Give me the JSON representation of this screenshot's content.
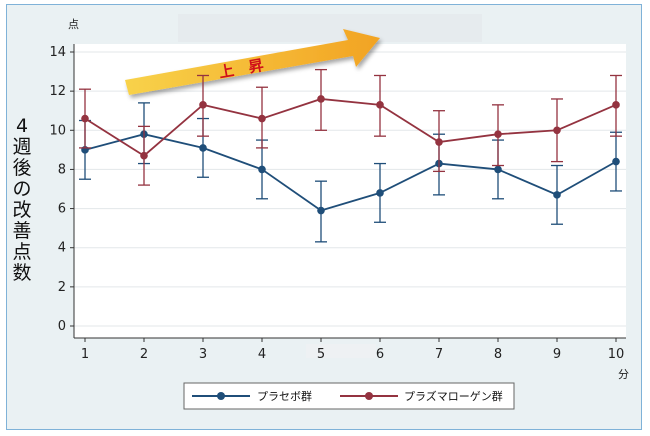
{
  "chart_data": {
    "type": "line",
    "ylabel": "4週後の改善点数",
    "y_unit": "点",
    "x_unit": "分",
    "x": [
      1,
      2,
      3,
      4,
      5,
      6,
      7,
      8,
      9,
      10
    ],
    "xlim": [
      1,
      10
    ],
    "ylim": [
      0,
      14
    ],
    "yticks": [
      0,
      2,
      4,
      6,
      8,
      10,
      12,
      14
    ],
    "grid": true,
    "legend_position": "bottom",
    "annotation": {
      "text": "上　昇",
      "color": "#d0101a"
    },
    "series": [
      {
        "name": "プラセボ群",
        "color": "#1f4e79",
        "values": [
          9.0,
          9.8,
          9.1,
          8.0,
          5.9,
          6.8,
          8.3,
          8.0,
          6.7,
          8.4
        ],
        "lower": [
          7.5,
          8.3,
          7.6,
          6.5,
          4.3,
          5.3,
          6.7,
          6.5,
          5.2,
          6.9
        ],
        "upper": [
          10.5,
          11.4,
          10.6,
          9.5,
          7.4,
          8.3,
          9.8,
          9.5,
          8.2,
          9.9
        ]
      },
      {
        "name": "プラズマローゲン群",
        "color": "#943340",
        "values": [
          10.6,
          8.7,
          11.3,
          10.6,
          11.6,
          11.3,
          9.4,
          9.8,
          10.0,
          11.3
        ],
        "lower": [
          9.1,
          7.2,
          9.7,
          9.1,
          10.0,
          9.7,
          7.9,
          8.2,
          8.4,
          9.7
        ],
        "upper": [
          12.1,
          10.2,
          12.8,
          12.2,
          13.1,
          12.8,
          11.0,
          11.3,
          11.6,
          12.8
        ]
      }
    ]
  }
}
